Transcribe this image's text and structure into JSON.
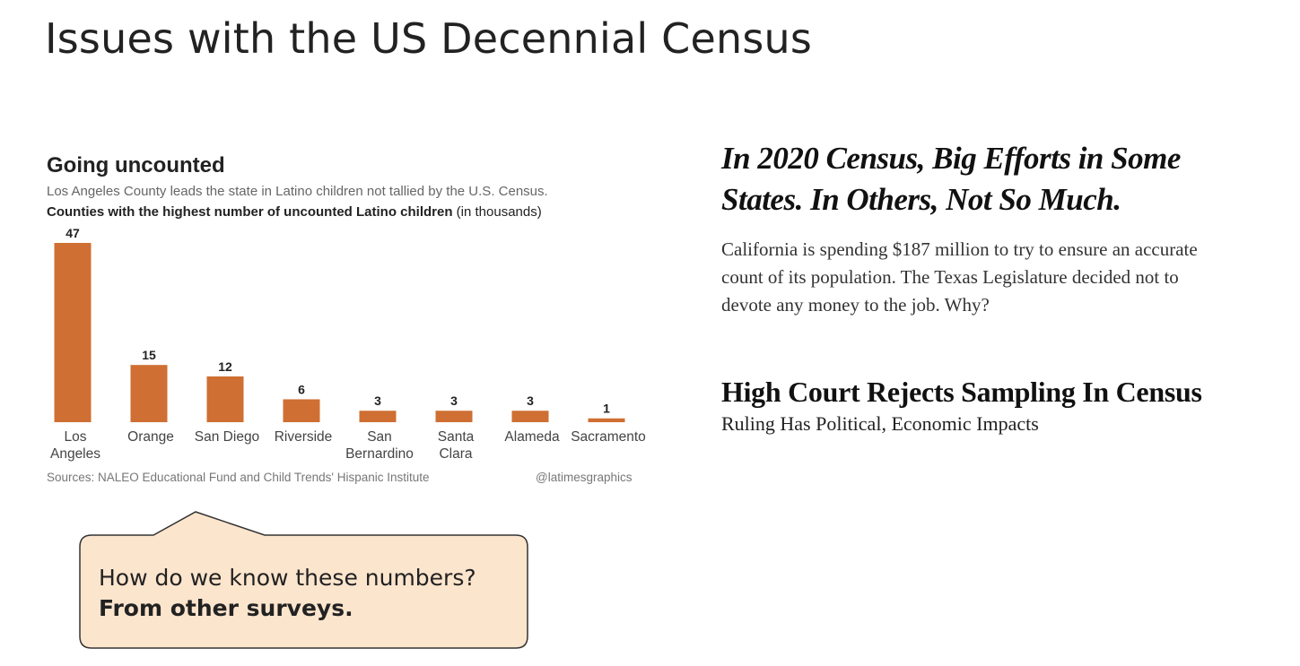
{
  "slide": {
    "title": "Issues with the US Decennial Census"
  },
  "chart_data": {
    "type": "bar",
    "title": "Going uncounted",
    "subtitle": "Los Angeles County leads the state in Latino children not tallied by the U.S. Census.",
    "caption_bold": "Counties with the highest number of uncounted Latino children",
    "caption_rest": " (in thousands)",
    "categories": [
      [
        "Los",
        "Angeles"
      ],
      [
        "Orange"
      ],
      [
        "San Diego"
      ],
      [
        "Riverside"
      ],
      [
        "San",
        "Bernardino"
      ],
      [
        "Santa",
        "Clara"
      ],
      [
        "Alameda"
      ],
      [
        "Sacramento"
      ]
    ],
    "values": [
      47,
      15,
      12,
      6,
      3,
      3,
      3,
      1
    ],
    "ylim": [
      0,
      47
    ],
    "bar_color": "#cf6f33",
    "source": "Sources: NALEO Educational Fund and Child Trends' Hispanic Institute",
    "credit": "@latimesgraphics"
  },
  "callout": {
    "question": "How do we know these numbers?",
    "answer": "From other surveys.",
    "fill": "#fce5cd"
  },
  "articles": [
    {
      "headline": "In 2020 Census, Big Efforts in Some States. In Others, Not So Much.",
      "summary": "California is spending $187 million to try to ensure an accurate count of its population. The Texas Legislature decided not to devote any money to the job. Why?"
    },
    {
      "headline": "High Court Rejects Sampling In Census",
      "subhead": "Ruling Has Political, Economic Impacts"
    }
  ]
}
